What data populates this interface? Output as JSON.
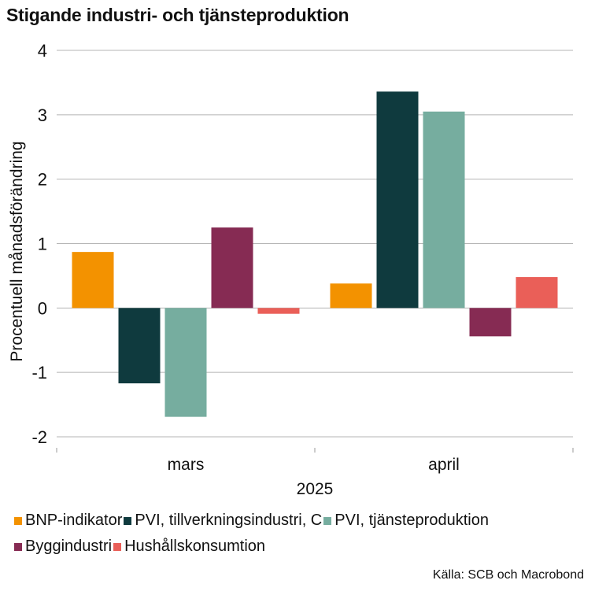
{
  "chart_data": {
    "type": "bar",
    "title": "Stigande industri- och tjänsteproduktion",
    "ylabel": "Procentuell månadsförändring",
    "xlabel": "2025",
    "ylim": [
      -2,
      4
    ],
    "yticks": [
      4,
      3,
      2,
      1,
      0,
      -1,
      -2
    ],
    "ytick_labels": [
      "4",
      "3",
      "2",
      "1",
      "0",
      "-1",
      "-2"
    ],
    "categories": [
      "mars",
      "april"
    ],
    "series": [
      {
        "name": "BNP-indikator",
        "color": "#F39200",
        "values": [
          0.87,
          0.38
        ]
      },
      {
        "name": "PVI, tillverkningsindustri, C",
        "color": "#0F3A3E",
        "values": [
          -1.17,
          3.36
        ]
      },
      {
        "name": "PVI, tjänsteproduktion",
        "color": "#76AD9F",
        "values": [
          -1.69,
          3.05
        ]
      },
      {
        "name": "Byggindustri",
        "color": "#862B53",
        "values": [
          1.25,
          -0.44
        ]
      },
      {
        "name": "Hushållskonsumtion",
        "color": "#EA5F58",
        "values": [
          -0.09,
          0.48
        ]
      }
    ],
    "grid": true,
    "legend": "bottom"
  },
  "source": "Källa: SCB och Macrobond"
}
